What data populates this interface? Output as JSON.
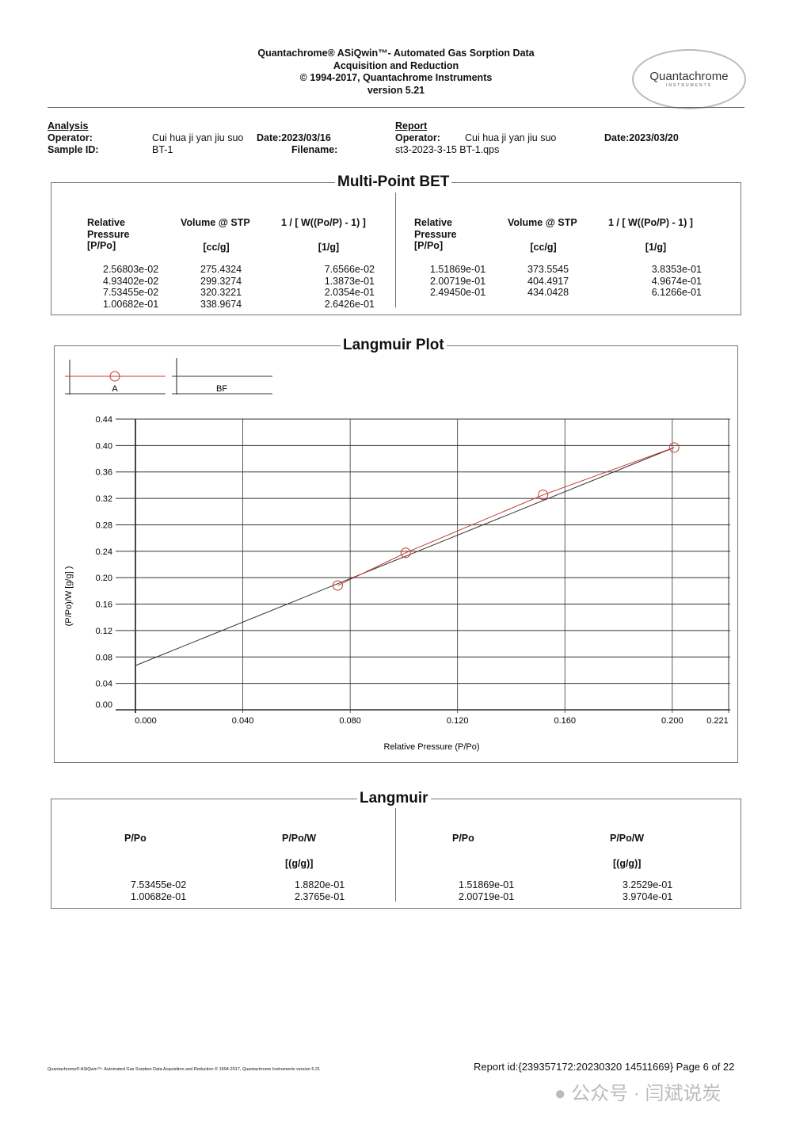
{
  "header": {
    "line1": "Quantachrome® ASiQwin™- Automated Gas Sorption Data",
    "line2": "Acquisition and Reduction",
    "line3": "© 1994-2017, Quantachrome Instruments",
    "line4": "version 5.21",
    "logo_text": "Quantachrome",
    "logo_sub": "INSTRUMENTS"
  },
  "analysis": {
    "heading": "Analysis",
    "operator_label": "Operator:",
    "operator": "Cui hua ji yan jiu suo",
    "date": "Date:2023/03/16",
    "sample_label": "Sample ID:",
    "sample": "BT-1",
    "filename_label": "Filename:"
  },
  "report": {
    "heading": "Report",
    "operator_label": "Operator:",
    "operator": "Cui hua ji yan jiu suo",
    "date": "Date:2023/03/20",
    "filename": "st3-2023-3-15  BT-1.qps"
  },
  "bet": {
    "title": "Multi-Point BET",
    "headers": [
      "Relative\nPressure\n[P/Po]",
      "Volume @ STP",
      "1 / [ W((Po/P) - 1) ]"
    ],
    "units": [
      "",
      "[cc/g]",
      "[1/g]"
    ],
    "left": [
      [
        "2.56803e-02",
        "275.4324",
        "7.6566e-02"
      ],
      [
        "4.93402e-02",
        "299.3274",
        "1.3873e-01"
      ],
      [
        "7.53455e-02",
        "320.3221",
        "2.0354e-01"
      ],
      [
        "1.00682e-01",
        "338.9674",
        "2.6426e-01"
      ]
    ],
    "right": [
      [
        "1.51869e-01",
        "373.5545",
        "3.8353e-01"
      ],
      [
        "2.00719e-01",
        "404.4917",
        "4.9674e-01"
      ],
      [
        "2.49450e-01",
        "434.0428",
        "6.1266e-01"
      ]
    ]
  },
  "chart_data": {
    "type": "scatter",
    "title": "Langmuir Plot",
    "xlabel": "Relative Pressure (P/Po)",
    "ylabel": "(P/Po)/W [g/g] )",
    "xlim": [
      0,
      0.221
    ],
    "ylim": [
      0,
      0.44
    ],
    "grid": true,
    "xticks": [
      "0.000",
      "0.040",
      "0.080",
      "0.120",
      "0.160",
      "0.200",
      "0.221"
    ],
    "yticks": [
      "0.44",
      "0.40",
      "0.36",
      "0.32",
      "0.28",
      "0.24",
      "0.20",
      "0.16",
      "0.12",
      "0.08",
      "0.04",
      "0.00"
    ],
    "legend": [
      "A",
      "BF"
    ],
    "series": [
      {
        "name": "A",
        "x": [
          0.0753455,
          0.100682,
          0.151869,
          0.200719
        ],
        "y": [
          0.1882,
          0.23765,
          0.32529,
          0.39704
        ],
        "color": "#c0392b"
      },
      {
        "name": "BF",
        "x": [
          0,
          0.2007
        ],
        "y": [
          0.067,
          0.397
        ],
        "color": "#333333"
      }
    ]
  },
  "langmuir": {
    "title": "Langmuir",
    "headers": [
      "P/Po",
      "P/Po/W"
    ],
    "unit": "[(g/g)]",
    "left": [
      [
        "7.53455e-02",
        "1.8820e-01"
      ],
      [
        "1.00682e-01",
        "2.3765e-01"
      ]
    ],
    "right": [
      [
        "1.51869e-01",
        "3.2529e-01"
      ],
      [
        "2.00719e-01",
        "3.9704e-01"
      ]
    ]
  },
  "footer": {
    "left": "Quantachrome® ASiQwin™- Automated Gas Sorption Data Acquisition and Reduction © 1994-2017, Quantachrome Instruments version 5.21",
    "right": "Report id:{239357172:20230320 14511669} Page 6 of 22",
    "watermark": "公众号 · 闫斌说炭"
  }
}
